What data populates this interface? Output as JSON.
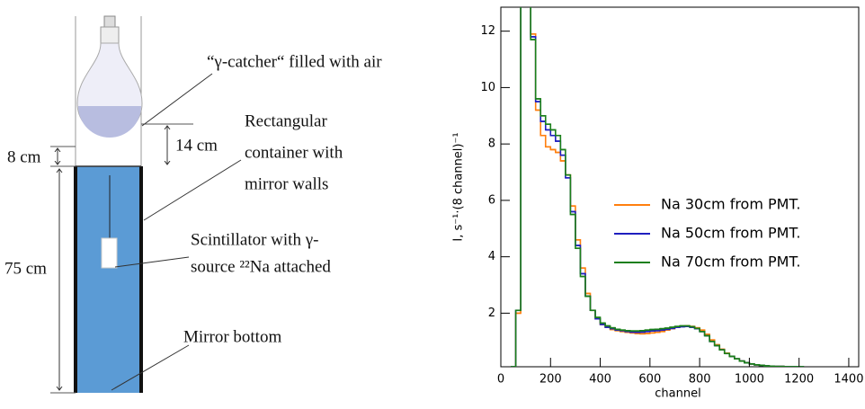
{
  "diagram": {
    "catcher_label": "“γ-catcher“ filled with air",
    "container_label": [
      "Rectangular",
      "container with",
      "mirror walls"
    ],
    "dim_8": "8 cm",
    "dim_14": "14 cm",
    "dim_75": "75 cm",
    "scintillator_label": [
      "Scintillator with γ-",
      "source ²²Na attached"
    ],
    "bottom_label": "Mirror bottom"
  },
  "chart_data": {
    "type": "line",
    "drawstyle": "steps",
    "x_label": "channel",
    "y_label": "I, s⁻¹·(8 channel)⁻¹",
    "x": [
      40,
      60,
      80,
      100,
      120,
      140,
      160,
      180,
      200,
      220,
      240,
      260,
      280,
      300,
      320,
      340,
      360,
      380,
      400,
      420,
      440,
      460,
      480,
      500,
      520,
      540,
      560,
      580,
      600,
      620,
      640,
      660,
      680,
      700,
      720,
      740,
      760,
      780,
      800,
      820,
      840,
      860,
      880,
      900,
      920,
      940,
      960,
      980,
      1000,
      1020,
      1040,
      1060,
      1080,
      1100,
      1120,
      1140,
      1160,
      1180,
      1200
    ],
    "series": [
      {
        "name": "Na 30cm from PMT.",
        "color": "#ff7f0e",
        "values": [
          0.1,
          2.0,
          14,
          14,
          11.9,
          9.2,
          8.3,
          7.9,
          7.8,
          7.7,
          7.4,
          6.9,
          5.8,
          4.6,
          3.6,
          2.7,
          2.1,
          1.8,
          1.6,
          1.5,
          1.42,
          1.38,
          1.35,
          1.32,
          1.3,
          1.28,
          1.27,
          1.28,
          1.3,
          1.32,
          1.35,
          1.4,
          1.45,
          1.5,
          1.53,
          1.55,
          1.53,
          1.48,
          1.4,
          1.25,
          1.05,
          0.88,
          0.72,
          0.58,
          0.47,
          0.38,
          0.3,
          0.24,
          0.2,
          0.17,
          0.15,
          0.13,
          0.12,
          0.11,
          0.11,
          0.1,
          0.1,
          0.1,
          0.1
        ]
      },
      {
        "name": "Na 50cm from PMT.",
        "color": "#1f1fbf",
        "values": [
          0.1,
          2.1,
          14,
          14,
          11.8,
          9.5,
          8.8,
          8.5,
          8.3,
          8.1,
          7.6,
          6.8,
          5.6,
          4.4,
          3.4,
          2.6,
          2.1,
          1.8,
          1.6,
          1.5,
          1.45,
          1.4,
          1.38,
          1.35,
          1.33,
          1.32,
          1.33,
          1.35,
          1.37,
          1.38,
          1.4,
          1.43,
          1.46,
          1.5,
          1.52,
          1.53,
          1.5,
          1.45,
          1.35,
          1.2,
          1.0,
          0.85,
          0.7,
          0.57,
          0.47,
          0.38,
          0.3,
          0.24,
          0.2,
          0.17,
          0.15,
          0.13,
          0.12,
          0.11,
          0.11,
          0.1,
          0.1,
          0.1,
          0.1
        ]
      },
      {
        "name": "Na 70cm from PMT.",
        "color": "#1a7f1a",
        "values": [
          0.1,
          2.1,
          14,
          14,
          11.7,
          9.6,
          9.0,
          8.7,
          8.5,
          8.3,
          7.8,
          6.9,
          5.5,
          4.3,
          3.3,
          2.6,
          2.1,
          1.85,
          1.65,
          1.55,
          1.48,
          1.43,
          1.4,
          1.38,
          1.37,
          1.37,
          1.38,
          1.4,
          1.42,
          1.43,
          1.45,
          1.47,
          1.5,
          1.53,
          1.55,
          1.55,
          1.52,
          1.46,
          1.35,
          1.2,
          1.0,
          0.85,
          0.7,
          0.57,
          0.47,
          0.38,
          0.3,
          0.24,
          0.2,
          0.17,
          0.15,
          0.13,
          0.12,
          0.11,
          0.11,
          0.1,
          0.1,
          0.1,
          0.1
        ]
      }
    ],
    "xlim": [
      0,
      1440
    ],
    "ylim": [
      0.1,
      12.85
    ],
    "xticks": [
      0,
      200,
      400,
      600,
      800,
      1000,
      1200,
      1400
    ],
    "yticks": [
      2,
      4,
      6,
      8,
      10,
      12
    ],
    "legend": "right"
  }
}
